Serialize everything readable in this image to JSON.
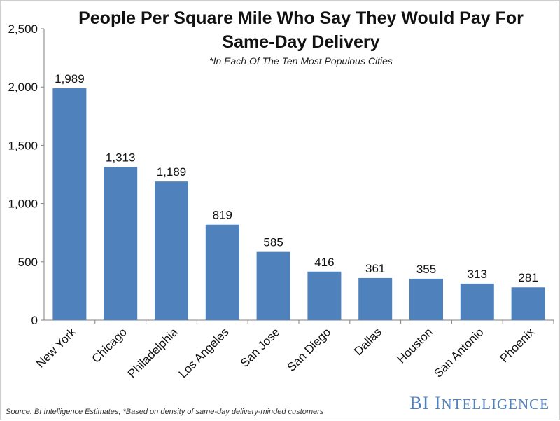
{
  "chart_data": {
    "type": "bar",
    "title_line1": "People Per Square Mile Who Say They Would Pay For",
    "title_line2": "Same-Day Delivery",
    "subtitle": "*In Each Of The Ten Most Populous Cities",
    "categories": [
      "New York",
      "Chicago",
      "Philadelphia",
      "Los Angeles",
      "San Jose",
      "San Diego",
      "Dallas",
      "Houston",
      "San Antonio",
      "Phoenix"
    ],
    "values": [
      1989,
      1313,
      1189,
      819,
      585,
      416,
      361,
      355,
      313,
      281
    ],
    "value_labels": [
      "1,989",
      "1,313",
      "1,189",
      "819",
      "585",
      "416",
      "361",
      "355",
      "313",
      "281"
    ],
    "y_ticks": [
      0,
      500,
      1000,
      1500,
      2000,
      2500
    ],
    "y_tick_labels": [
      "0",
      "500",
      "1,000",
      "1,500",
      "2,000",
      "2,500"
    ],
    "ylim": [
      0,
      2500
    ],
    "xlabel": "",
    "ylabel": "",
    "bar_color": "#4f81bd",
    "grid": false
  },
  "footer": {
    "source": "Source: BI Intelligence Estimates, *Based on density of same-day delivery-minded customers"
  },
  "brand": {
    "bi": "BI",
    "intelligence_initial": "I",
    "intelligence_rest": "NTELLIGENCE",
    "color": "#4f81bd"
  }
}
